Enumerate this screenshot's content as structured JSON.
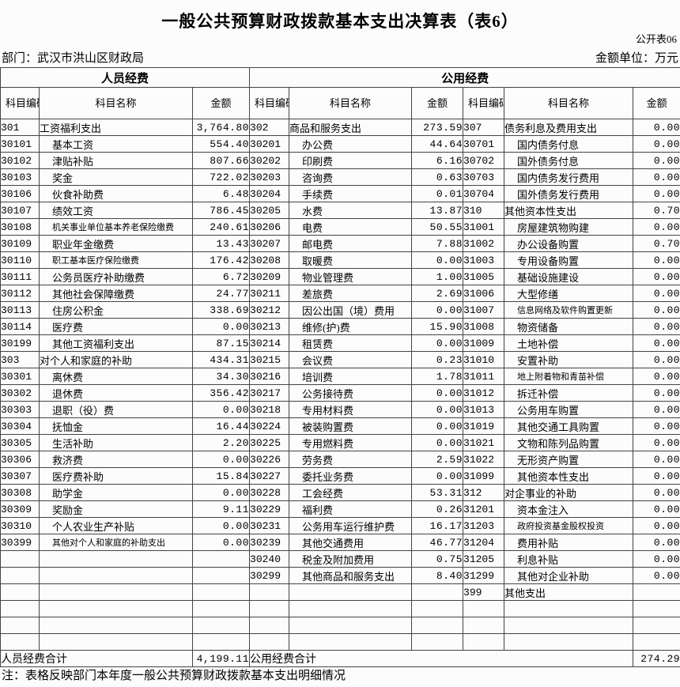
{
  "page": {
    "title": "一般公共预算财政拨款基本支出决算表（表6）",
    "table_no": "公开表06",
    "department": "部门：武汉市洪山区财政局",
    "unit": "金额单位：万元",
    "note": "注：表格反映部门本年度一般公共预算财政拨款基本支出明细情况"
  },
  "table": {
    "group_headers": [
      "人员经费",
      "公用经费"
    ],
    "column_headers": [
      "科目编码",
      "科目名称",
      "金额"
    ],
    "totals": {
      "personnel_label": "人员经费合计",
      "personnel_amount": "4,199.11",
      "public_label": "公用经费合计",
      "public_amount": "274.29"
    }
  },
  "rows": [
    [
      "301",
      "工资福利支出",
      "3,764.80",
      "302",
      "商品和服务支出",
      "273.59",
      "307",
      "债务利息及费用支出",
      "0.00"
    ],
    [
      "30101",
      "基本工资",
      "554.40",
      "30201",
      "办公费",
      "44.64",
      "30701",
      "国内债务付息",
      "0.00"
    ],
    [
      "30102",
      "津贴补贴",
      "807.66",
      "30202",
      "印刷费",
      "6.16",
      "30702",
      "国外债务付息",
      "0.00"
    ],
    [
      "30103",
      "奖金",
      "722.02",
      "30203",
      "咨询费",
      "0.63",
      "30703",
      "国内债务发行费用",
      "0.00"
    ],
    [
      "30106",
      "伙食补助费",
      "6.48",
      "30204",
      "手续费",
      "0.01",
      "30704",
      "国外债务发行费用",
      "0.00"
    ],
    [
      "30107",
      "绩效工资",
      "786.45",
      "30205",
      "水费",
      "13.87",
      "310",
      "其他资本性支出",
      "0.70"
    ],
    [
      "30108",
      "机关事业单位基本养老保险缴费",
      "240.61",
      "30206",
      "电费",
      "50.55",
      "31001",
      "房屋建筑物购建",
      "0.00"
    ],
    [
      "30109",
      "职业年金缴费",
      "13.43",
      "30207",
      "邮电费",
      "7.88",
      "31002",
      "办公设备购置",
      "0.70"
    ],
    [
      "30110",
      "职工基本医疗保险缴费",
      "176.42",
      "30208",
      "取暖费",
      "0.00",
      "31003",
      "专用设备购置",
      "0.00"
    ],
    [
      "30111",
      "公务员医疗补助缴费",
      "6.72",
      "30209",
      "物业管理费",
      "1.00",
      "31005",
      "基础设施建设",
      "0.00"
    ],
    [
      "30112",
      "其他社会保障缴费",
      "24.77",
      "30211",
      "差旅费",
      "2.69",
      "31006",
      "大型修缮",
      "0.00"
    ],
    [
      "30113",
      "住房公积金",
      "338.69",
      "30212",
      "因公出国（境）费用",
      "0.00",
      "31007",
      "信息网络及软件购置更新",
      "0.00"
    ],
    [
      "30114",
      "医疗费",
      "0.00",
      "30213",
      "维修(护)费",
      "15.90",
      "31008",
      "物资储备",
      "0.00"
    ],
    [
      "30199",
      "其他工资福利支出",
      "87.15",
      "30214",
      "租赁费",
      "0.00",
      "31009",
      "土地补偿",
      "0.00"
    ],
    [
      "303",
      "对个人和家庭的补助",
      "434.31",
      "30215",
      "会议费",
      "0.23",
      "31010",
      "安置补助",
      "0.00"
    ],
    [
      "30301",
      "离休费",
      "34.30",
      "30216",
      "培训费",
      "1.78",
      "31011",
      "地上附着物和青苗补偿",
      "0.00"
    ],
    [
      "30302",
      "退休费",
      "356.42",
      "30217",
      "公务接待费",
      "0.00",
      "31012",
      "拆迁补偿",
      "0.00"
    ],
    [
      "30303",
      "退职（役）费",
      "0.00",
      "30218",
      "专用材料费",
      "0.00",
      "31013",
      "公务用车购置",
      "0.00"
    ],
    [
      "30304",
      "抚恤金",
      "16.44",
      "30224",
      "被装购置费",
      "0.00",
      "31019",
      "其他交通工具购置",
      "0.00"
    ],
    [
      "30305",
      "生活补助",
      "2.20",
      "30225",
      "专用燃料费",
      "0.00",
      "31021",
      "文物和陈列品购置",
      "0.00"
    ],
    [
      "30306",
      "救济费",
      "0.00",
      "30226",
      "劳务费",
      "2.59",
      "31022",
      "无形资产购置",
      "0.00"
    ],
    [
      "30307",
      "医疗费补助",
      "15.84",
      "30227",
      "委托业务费",
      "0.00",
      "31099",
      "其他资本性支出",
      "0.00"
    ],
    [
      "30308",
      "助学金",
      "0.00",
      "30228",
      "工会经费",
      "53.31",
      "312",
      "对企事业的补助",
      "0.00"
    ],
    [
      "30309",
      "奖励金",
      "9.11",
      "30229",
      "福利费",
      "0.26",
      "31201",
      "资本金注入",
      "0.00"
    ],
    [
      "30310",
      "个人农业生产补贴",
      "0.00",
      "30231",
      "公务用车运行维护费",
      "16.17",
      "31203",
      "政府投资基金股权投资",
      "0.00"
    ],
    [
      "30399",
      "其他对个人和家庭的补助支出",
      "0.00",
      "30239",
      "其他交通费用",
      "46.77",
      "31204",
      "费用补贴",
      "0.00"
    ],
    [
      "",
      "",
      "",
      "30240",
      "税金及附加费用",
      "0.75",
      "31205",
      "利息补贴",
      "0.00"
    ],
    [
      "",
      "",
      "",
      "30299",
      "其他商品和服务支出",
      "8.40",
      "31299",
      "其他对企业补助",
      "0.00"
    ],
    [
      "",
      "",
      "",
      "",
      "",
      "",
      "399",
      "其他支出",
      ""
    ],
    [
      "",
      "",
      "",
      "",
      "",
      "",
      "",
      "",
      ""
    ],
    [
      "",
      "",
      "",
      "",
      "",
      "",
      "",
      "",
      ""
    ],
    [
      "",
      "",
      "",
      "",
      "",
      "",
      "",
      "",
      ""
    ]
  ]
}
